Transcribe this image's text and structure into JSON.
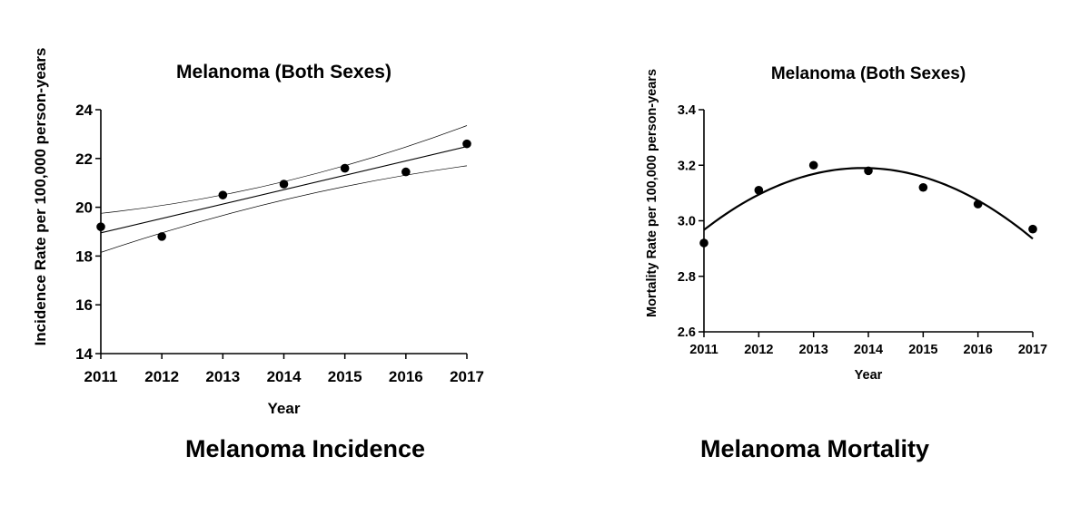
{
  "chart_data": [
    {
      "type": "scatter",
      "title": "Melanoma (Both Sexes)",
      "xlabel": "Year",
      "ylabel": "Incidence Rate per 100,000 person-years",
      "caption": "Melanoma Incidence",
      "xlim": [
        2011,
        2017
      ],
      "ylim": [
        14,
        24
      ],
      "x_ticks": [
        "2011",
        "2012",
        "2013",
        "2014",
        "2015",
        "2016",
        "2017"
      ],
      "y_ticks": [
        "14",
        "16",
        "18",
        "20",
        "22",
        "24"
      ],
      "points": [
        {
          "x": 2011,
          "y": 19.2
        },
        {
          "x": 2012,
          "y": 18.8
        },
        {
          "x": 2013,
          "y": 20.5
        },
        {
          "x": 2014,
          "y": 20.95
        },
        {
          "x": 2015,
          "y": 21.6
        },
        {
          "x": 2016,
          "y": 21.45
        },
        {
          "x": 2017,
          "y": 22.6
        }
      ],
      "fit": {
        "type": "linear",
        "intercept_at_2011": 18.95,
        "slope_per_year": 0.59
      },
      "confidence_band": {
        "upper": [
          {
            "x": 2011,
            "y": 19.75
          },
          {
            "x": 2014,
            "y": 21.05
          },
          {
            "x": 2017,
            "y": 23.35
          }
        ],
        "lower": [
          {
            "x": 2011,
            "y": 18.15
          },
          {
            "x": 2014,
            "y": 20.3
          },
          {
            "x": 2017,
            "y": 21.7
          }
        ]
      },
      "grid": false,
      "legend": "none"
    },
    {
      "type": "scatter",
      "title": "Melanoma (Both Sexes)",
      "xlabel": "Year",
      "ylabel": "Mortality Rate per 100,000 person-years",
      "caption": "Melanoma Mortality",
      "xlim": [
        2011,
        2017
      ],
      "ylim": [
        2.6,
        3.4
      ],
      "x_ticks": [
        "2011",
        "2012",
        "2013",
        "2014",
        "2015",
        "2016",
        "2017"
      ],
      "y_ticks": [
        "2.6",
        "2.8",
        "3.0",
        "3.2",
        "3.4"
      ],
      "points": [
        {
          "x": 2011,
          "y": 2.92
        },
        {
          "x": 2012,
          "y": 3.11
        },
        {
          "x": 2013,
          "y": 3.2
        },
        {
          "x": 2014,
          "y": 3.18
        },
        {
          "x": 2015,
          "y": 3.12
        },
        {
          "x": 2016,
          "y": 3.06
        },
        {
          "x": 2017,
          "y": 2.97
        }
      ],
      "fit": {
        "type": "quadratic",
        "peak_x": 2013.9,
        "peak_y": 3.19,
        "curvature": -0.0265
      },
      "grid": false,
      "legend": "none"
    }
  ]
}
